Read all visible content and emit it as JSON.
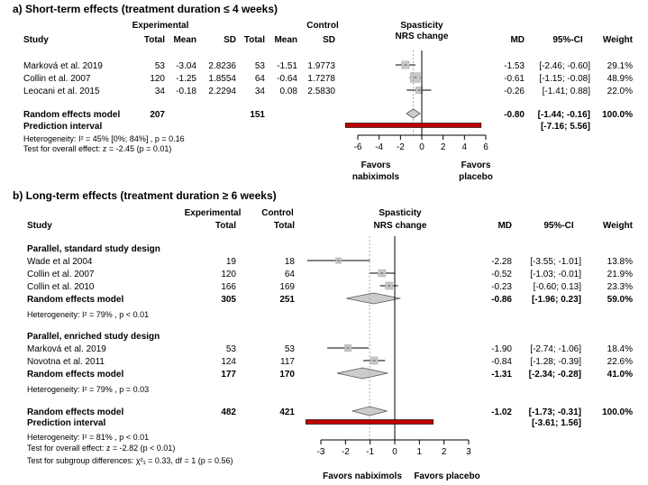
{
  "chart_data": [
    {
      "type": "forest",
      "title": "a) Short-term effects (treatment duration ≤ 4 weeks)",
      "group_headers": {
        "experimental": "Experimental",
        "control": "Control"
      },
      "columns": {
        "study": "Study",
        "total": "Total",
        "mean": "Mean",
        "sd": "SD",
        "md": "MD",
        "ci": "95%-CI",
        "weight": "Weight"
      },
      "plot_header": [
        "Spasticity",
        "NRS change"
      ],
      "xlim": [
        -6,
        6
      ],
      "x_ticks": [
        -6,
        -4,
        -2,
        0,
        2,
        4,
        6
      ],
      "x_tick_labels": [
        "-6",
        "-4",
        "-2",
        "0",
        "2",
        "4",
        "6"
      ],
      "favors_left": [
        "Favors",
        "nabiximols"
      ],
      "favors_right": [
        "Favors",
        "placebo"
      ],
      "studies": [
        {
          "name": "Marková et al. 2019",
          "e_total": "53",
          "e_mean": "-3.04",
          "e_sd": "2.8236",
          "c_total": "53",
          "c_mean": "-1.51",
          "c_sd": "1.9773",
          "md": -1.53,
          "lo": -2.46,
          "hi": -0.6,
          "md_text": "-1.53",
          "ci_text": "[-2.46; -0.60]",
          "weight": 29.1,
          "weight_text": "29.1%"
        },
        {
          "name": "Collin et al. 2007",
          "e_total": "120",
          "e_mean": "-1.25",
          "e_sd": "1.8554",
          "c_total": "64",
          "c_mean": "-0.64",
          "c_sd": "1.7278",
          "md": -0.61,
          "lo": -1.15,
          "hi": -0.08,
          "md_text": "-0.61",
          "ci_text": "[-1.15; -0.08]",
          "weight": 48.9,
          "weight_text": "48.9%"
        },
        {
          "name": "Leocani et al. 2015",
          "e_total": "34",
          "e_mean": "-0.18",
          "e_sd": "2.2294",
          "c_total": "34",
          "c_mean": "0.08",
          "c_sd": "2.5830",
          "md": -0.26,
          "lo": -1.41,
          "hi": 0.88,
          "md_text": "-0.26",
          "ci_text": "[-1.41; 0.88]",
          "weight": 22.0,
          "weight_text": "22.0%"
        }
      ],
      "pooled": {
        "label": "Random effects model",
        "e_total": "207",
        "c_total": "151",
        "md": -0.8,
        "lo": -1.44,
        "hi": -0.16,
        "md_text": "-0.80",
        "ci_text": "[-1.44; -0.16]",
        "weight_text": "100.0%"
      },
      "prediction": {
        "label": "Prediction interval",
        "lo": -7.16,
        "hi": 5.56,
        "ci_text": "[-7.16;  5.56]"
      },
      "heterogeneity": "Heterogeneity:  I² = 45% [0%; 84%] , p = 0.16",
      "overall_test": "Test for overall effect:  z = -2.45  (p = 0.01)"
    },
    {
      "type": "forest",
      "title": "b) Long-term effects (treatment duration ≥ 6  weeks)",
      "group_headers": {
        "experimental": "Experimental",
        "control": "Control"
      },
      "columns": {
        "study": "Study",
        "e_total": "Total",
        "c_total": "Total",
        "md": "MD",
        "ci": "95%-CI",
        "weight": "Weight"
      },
      "plot_header": [
        "Spasticity",
        "NRS change"
      ],
      "xlim": [
        -3,
        3
      ],
      "x_ticks": [
        -3,
        -2,
        -1,
        0,
        1,
        2,
        3
      ],
      "x_tick_labels": [
        "-3",
        "-2",
        "-1",
        "0",
        "1",
        "2",
        "3"
      ],
      "favors_left_text": "Favors nabiximols",
      "favors_right_text": "Favors placebo",
      "subgroups": [
        {
          "title": "Parallel, standard study design",
          "studies": [
            {
              "name": "Wade et al 2004",
              "e_total": "19",
              "c_total": "18",
              "md": -2.28,
              "lo": -3.55,
              "hi": -1.01,
              "md_text": "-2.28",
              "ci_text": "[-3.55; -1.01]",
              "weight": 13.8,
              "weight_text": "13.8%"
            },
            {
              "name": "Collin et al. 2007",
              "e_total": "120",
              "c_total": "64",
              "md": -0.52,
              "lo": -1.03,
              "hi": -0.01,
              "md_text": "-0.52",
              "ci_text": "[-1.03; -0.01]",
              "weight": 21.9,
              "weight_text": "21.9%"
            },
            {
              "name": "Collin et al. 2010",
              "e_total": "166",
              "c_total": "169",
              "md": -0.23,
              "lo": -0.6,
              "hi": 0.13,
              "md_text": "-0.23",
              "ci_text": "[-0.60;  0.13]",
              "weight": 23.3,
              "weight_text": "23.3%"
            }
          ],
          "pooled": {
            "label": "Random effects model",
            "e_total": "305",
            "c_total": "251",
            "md": -0.86,
            "lo": -1.96,
            "hi": 0.23,
            "md_text": "-0.86",
            "ci_text": "[-1.96;  0.23]",
            "weight_text": "59.0%"
          },
          "heterogeneity": "Heterogeneity:  I² = 79% , p < 0.01"
        },
        {
          "title": "Parallel, enriched study design",
          "studies": [
            {
              "name": "Marková et al. 2019",
              "e_total": "53",
              "c_total": "53",
              "md": -1.9,
              "lo": -2.74,
              "hi": -1.06,
              "md_text": "-1.90",
              "ci_text": "[-2.74; -1.06]",
              "weight": 18.4,
              "weight_text": "18.4%"
            },
            {
              "name": "Novotna et al. 2011",
              "e_total": "124",
              "c_total": "117",
              "md": -0.84,
              "lo": -1.28,
              "hi": -0.39,
              "md_text": "-0.84",
              "ci_text": "[-1.28; -0.39]",
              "weight": 22.6,
              "weight_text": "22.6%"
            }
          ],
          "pooled": {
            "label": "Random effects model",
            "e_total": "177",
            "c_total": "170",
            "md": -1.31,
            "lo": -2.34,
            "hi": -0.28,
            "md_text": "-1.31",
            "ci_text": "[-2.34; -0.28]",
            "weight_text": "41.0%"
          },
          "heterogeneity": "Heterogeneity:  I² = 79% , p = 0.03"
        }
      ],
      "overall": {
        "label": "Random effects model",
        "e_total": "482",
        "c_total": "421",
        "md": -1.02,
        "lo": -1.73,
        "hi": -0.31,
        "md_text": "-1.02",
        "ci_text": "[-1.73; -0.31]",
        "weight_text": "100.0%"
      },
      "prediction": {
        "label": "Prediction interval",
        "lo": -3.61,
        "hi": 1.56,
        "ci_text": "[-3.61;  1.56]"
      },
      "heterogeneity": "Heterogeneity:  I² = 81% , p < 0.01",
      "overall_test": "Test for overall effect:    z = -2.82  (p < 0.01)",
      "subgroup_test": "Test for subgroup differences:    χ²₁ = 0.33, df = 1    (p = 0.56)"
    }
  ],
  "colors": {
    "prediction_fill": "#c00000",
    "box_fill": "#c8c8c8",
    "diamond_fill": "#cccccc",
    "line": "#000000",
    "ref_line": "#999999"
  }
}
